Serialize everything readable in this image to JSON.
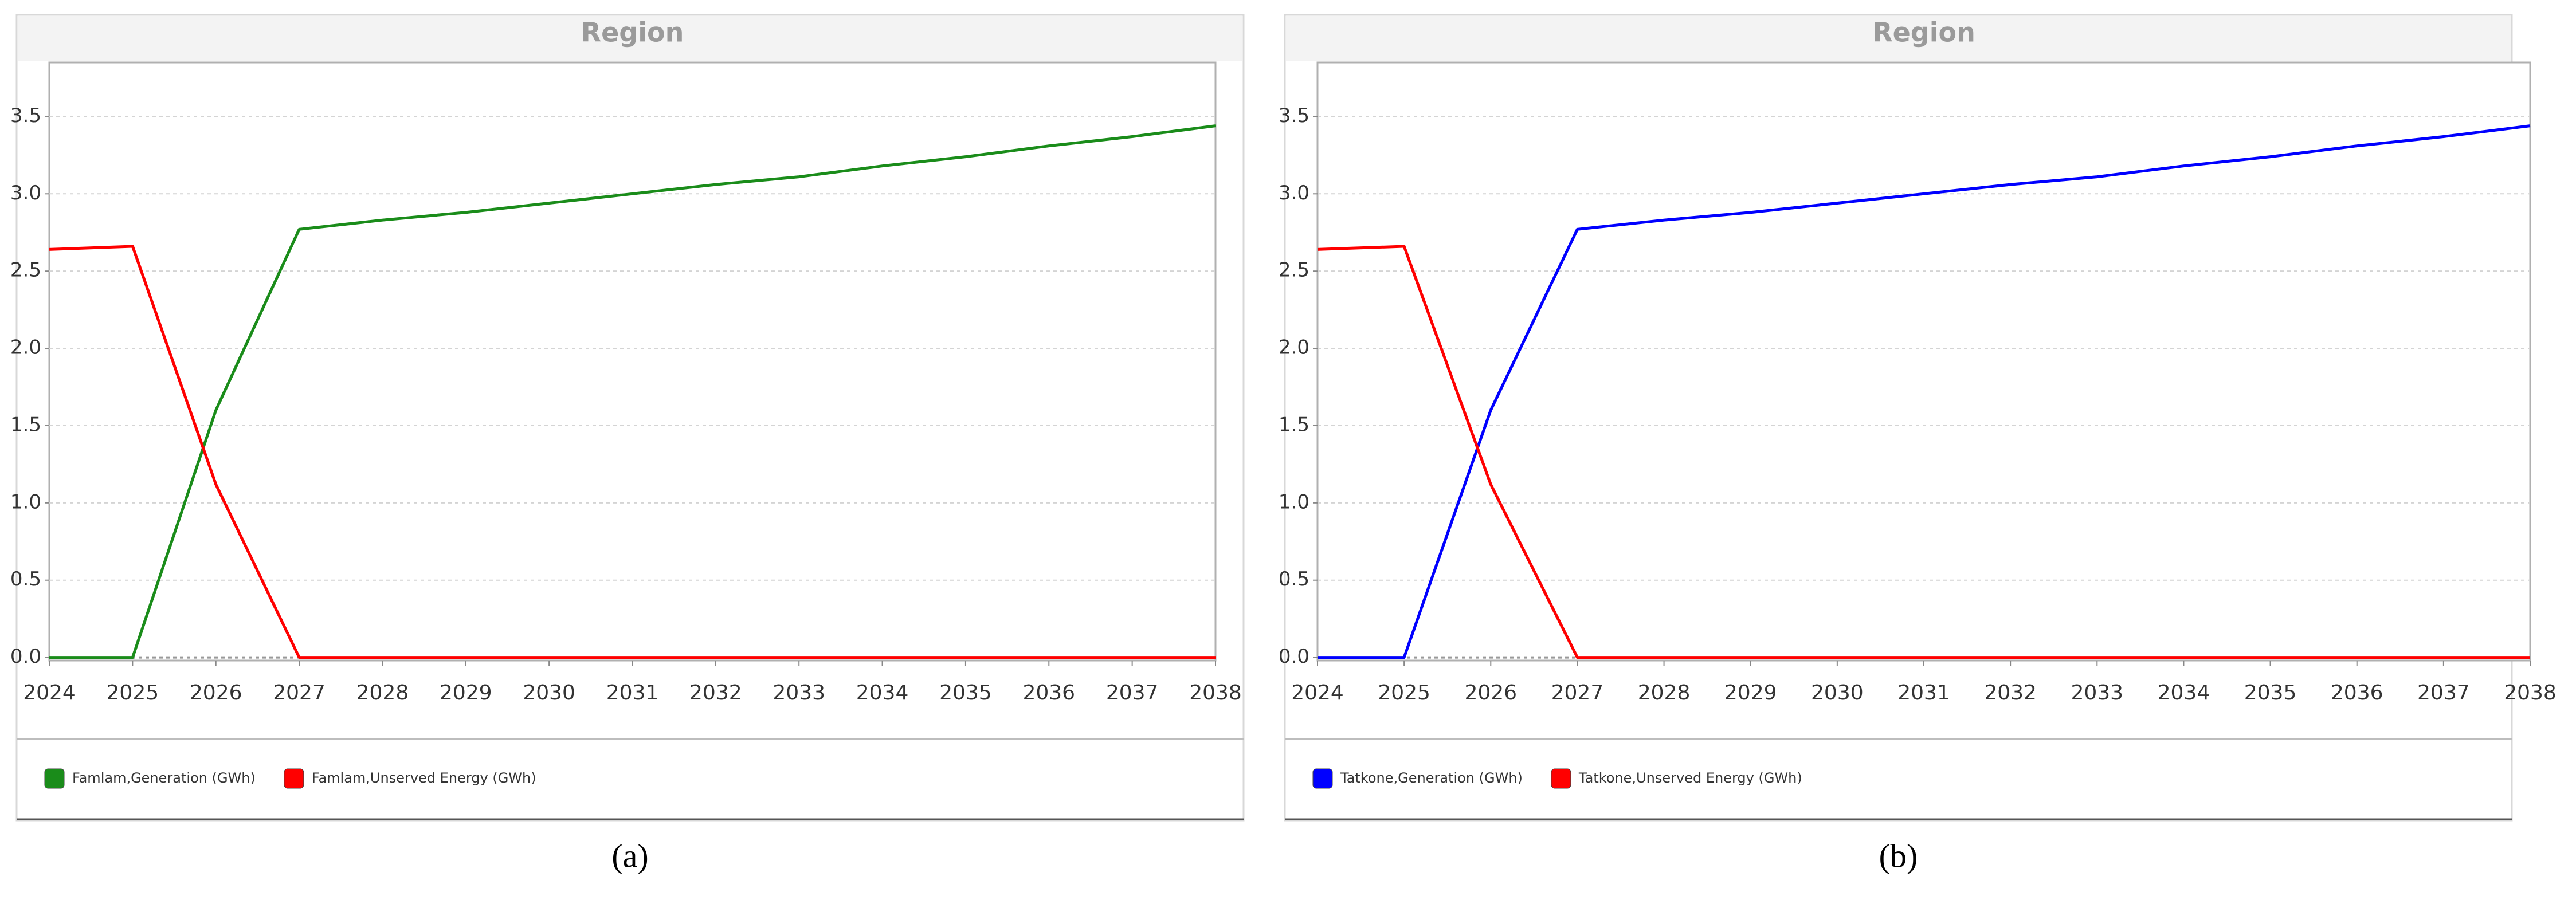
{
  "chart_data": [
    {
      "type": "line",
      "title": "Region",
      "caption": "(a)",
      "x": [
        2024,
        2025,
        2026,
        2027,
        2028,
        2029,
        2030,
        2031,
        2032,
        2033,
        2034,
        2035,
        2036,
        2037,
        2038
      ],
      "xlim": [
        2024,
        2038
      ],
      "xticks": [
        2024,
        2025,
        2026,
        2027,
        2028,
        2029,
        2030,
        2031,
        2032,
        2033,
        2034,
        2035,
        2036,
        2037,
        2038
      ],
      "ylim": [
        -0.02,
        3.85
      ],
      "yticks": [
        {
          "value": 0,
          "label": "0.0"
        },
        {
          "value": 0.5,
          "label": "0.5"
        },
        {
          "value": 1,
          "label": "1.0"
        },
        {
          "value": 1.5,
          "label": "1.5"
        },
        {
          "value": 2,
          "label": "2.0"
        },
        {
          "value": 2.5,
          "label": "2.5"
        },
        {
          "value": 3,
          "label": "3.0"
        },
        {
          "value": 3.5,
          "label": "3.5"
        }
      ],
      "grid": true,
      "legend": "bottom-left",
      "series": [
        {
          "name": "Famlam,Generation (GWh)",
          "color": "#1a8c1a",
          "values": [
            0,
            0,
            1.6,
            2.77,
            2.83,
            2.88,
            2.94,
            3.0,
            3.06,
            3.11,
            3.18,
            3.24,
            3.31,
            3.37,
            3.44
          ]
        },
        {
          "name": "Famlam,Unserved Energy (GWh)",
          "color": "#ff0000",
          "values": [
            2.64,
            2.66,
            1.12,
            0,
            0,
            0,
            0,
            0,
            0,
            0,
            0,
            0,
            0,
            0,
            0
          ]
        }
      ]
    },
    {
      "type": "line",
      "title": "Region",
      "caption": "(b)",
      "x": [
        2024,
        2025,
        2026,
        2027,
        2028,
        2029,
        2030,
        2031,
        2032,
        2033,
        2034,
        2035,
        2036,
        2037,
        2038
      ],
      "xlim": [
        2024,
        2038
      ],
      "xticks": [
        2024,
        2025,
        2026,
        2027,
        2028,
        2029,
        2030,
        2031,
        2032,
        2033,
        2034,
        2035,
        2036,
        2037,
        2038
      ],
      "ylim": [
        -0.02,
        3.85
      ],
      "yticks": [
        {
          "value": 0,
          "label": "0.0"
        },
        {
          "value": 0.5,
          "label": "0.5"
        },
        {
          "value": 1,
          "label": "1.0"
        },
        {
          "value": 1.5,
          "label": "1.5"
        },
        {
          "value": 2,
          "label": "2.0"
        },
        {
          "value": 2.5,
          "label": "2.5"
        },
        {
          "value": 3,
          "label": "3.0"
        },
        {
          "value": 3.5,
          "label": "3.5"
        }
      ],
      "grid": true,
      "legend": "bottom-left",
      "series": [
        {
          "name": "Tatkone,Generation (GWh)",
          "color": "#0000ff",
          "values": [
            0,
            0,
            1.6,
            2.77,
            2.83,
            2.88,
            2.94,
            3.0,
            3.06,
            3.11,
            3.18,
            3.24,
            3.31,
            3.37,
            3.44
          ]
        },
        {
          "name": "Tatkone,Unserved Energy (GWh)",
          "color": "#ff0000",
          "values": [
            2.64,
            2.66,
            1.12,
            0,
            0,
            0,
            0,
            0,
            0,
            0,
            0,
            0,
            0,
            0,
            0
          ]
        }
      ]
    }
  ]
}
